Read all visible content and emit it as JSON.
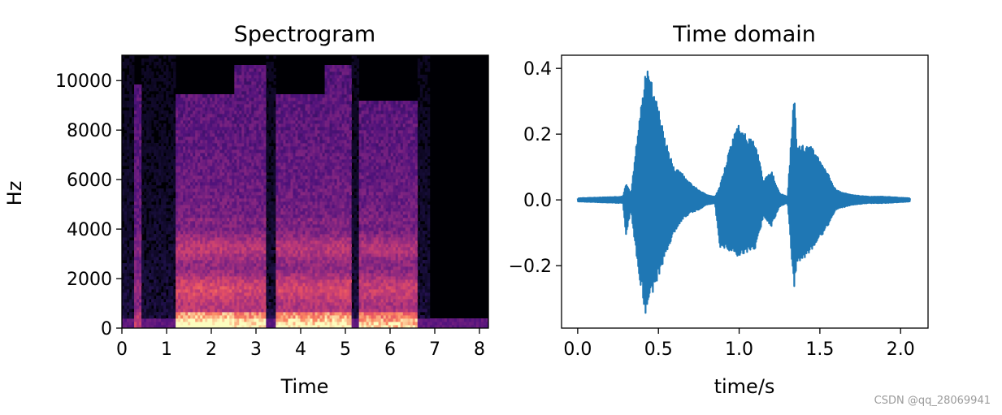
{
  "chart_data": [
    {
      "type": "heatmap",
      "title": "Spectrogram",
      "xlabel": "Time",
      "ylabel": "Hz",
      "xlim": [
        0,
        8.2
      ],
      "ylim": [
        0,
        11025
      ],
      "xticks": [
        0,
        1,
        2,
        3,
        4,
        5,
        6,
        7,
        8
      ],
      "yticks": [
        0,
        2000,
        4000,
        6000,
        8000,
        10000
      ],
      "colormap": "magma",
      "segments": [
        {
          "start": 0.3,
          "end": 0.45,
          "top_hz": 9800,
          "level": 0.35
        },
        {
          "start": 1.18,
          "end": 2.5,
          "top_hz": 9500,
          "level": 0.75
        },
        {
          "start": 2.5,
          "end": 3.2,
          "top_hz": 10600,
          "level": 0.7
        },
        {
          "start": 3.45,
          "end": 4.55,
          "top_hz": 9500,
          "level": 0.7
        },
        {
          "start": 4.55,
          "end": 5.15,
          "top_hz": 10600,
          "level": 0.72
        },
        {
          "start": 5.3,
          "end": 6.6,
          "top_hz": 9200,
          "level": 0.65
        }
      ]
    },
    {
      "type": "line",
      "title": "Time domain",
      "xlabel": "time/s",
      "ylabel": "",
      "xlim": [
        -0.1,
        2.17
      ],
      "ylim": [
        -0.39,
        0.44
      ],
      "xticks": [
        0.0,
        0.5,
        1.0,
        1.5,
        2.0
      ],
      "xtick_labels": [
        "0.0",
        "0.5",
        "1.0",
        "1.5",
        "2.0"
      ],
      "yticks": [
        -0.2,
        0.0,
        0.2,
        0.4
      ],
      "ytick_labels": [
        "−0.2",
        "0.0",
        "0.2",
        "0.4"
      ],
      "color": "#1f77b4",
      "envelope": {
        "x": [
          0.0,
          0.28,
          0.3,
          0.33,
          0.37,
          0.42,
          0.45,
          0.5,
          0.55,
          0.6,
          0.65,
          0.7,
          0.75,
          0.8,
          0.85,
          0.88,
          0.92,
          0.97,
          1.0,
          1.05,
          1.1,
          1.15,
          1.2,
          1.25,
          1.3,
          1.34,
          1.36,
          1.4,
          1.45,
          1.5,
          1.55,
          1.6,
          1.7,
          1.8,
          1.9,
          2.06
        ],
        "upper": [
          0.005,
          0.01,
          0.05,
          0.02,
          0.2,
          0.4,
          0.38,
          0.28,
          0.17,
          0.1,
          0.08,
          0.05,
          0.03,
          0.015,
          0.01,
          0.04,
          0.12,
          0.2,
          0.23,
          0.19,
          0.18,
          0.06,
          0.09,
          0.02,
          0.01,
          0.33,
          0.16,
          0.17,
          0.16,
          0.12,
          0.08,
          0.03,
          0.015,
          0.01,
          0.01,
          0.005
        ],
        "lower": [
          -0.005,
          -0.01,
          -0.11,
          -0.03,
          -0.2,
          -0.35,
          -0.3,
          -0.24,
          -0.16,
          -0.1,
          -0.06,
          -0.04,
          -0.03,
          -0.015,
          -0.01,
          -0.15,
          -0.15,
          -0.17,
          -0.17,
          -0.16,
          -0.16,
          -0.05,
          -0.08,
          -0.02,
          -0.01,
          -0.27,
          -0.2,
          -0.18,
          -0.16,
          -0.12,
          -0.08,
          -0.03,
          -0.015,
          -0.01,
          -0.01,
          -0.005
        ]
      }
    }
  ],
  "watermark": "CSDN @qq_28069941"
}
